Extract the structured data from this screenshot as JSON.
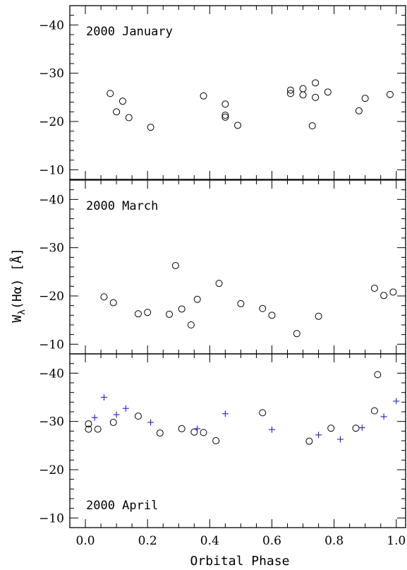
{
  "chart_data": {
    "type": "scatter",
    "xlabel": "Orbital Phase",
    "ylabel": "W",
    "ylabel_sub": "λ",
    "ylabel_rest": "(Hα) [Å]",
    "xlim": [
      -0.05,
      1.03
    ],
    "x_ticks": [
      "0.0",
      "0.2",
      "0.4",
      "0.6",
      "0.8",
      "1.0"
    ],
    "grid": false,
    "colors": {
      "open_circle": "#000000",
      "plus": "#1f1fd6"
    },
    "panels": [
      {
        "label": "2000 January",
        "ylim": [
          -44,
          -8
        ],
        "y_ticks": [
          "-40",
          "-30",
          "-20",
          "-10"
        ],
        "series": [
          {
            "marker": "circle",
            "points": [
              [
                0.08,
                -25.8
              ],
              [
                0.1,
                -22.0
              ],
              [
                0.12,
                -24.2
              ],
              [
                0.14,
                -20.8
              ],
              [
                0.21,
                -18.8
              ],
              [
                0.38,
                -25.3
              ],
              [
                0.45,
                -23.6
              ],
              [
                0.45,
                -21.3
              ],
              [
                0.45,
                -20.9
              ],
              [
                0.49,
                -19.2
              ],
              [
                0.66,
                -26.5
              ],
              [
                0.66,
                -25.8
              ],
              [
                0.7,
                -26.8
              ],
              [
                0.7,
                -25.5
              ],
              [
                0.74,
                -28.0
              ],
              [
                0.74,
                -25.0
              ],
              [
                0.73,
                -19.1
              ],
              [
                0.78,
                -26.1
              ],
              [
                0.88,
                -22.2
              ],
              [
                0.9,
                -24.8
              ],
              [
                0.98,
                -25.6
              ]
            ]
          }
        ]
      },
      {
        "label": "2000 March",
        "ylim": [
          -44,
          -8
        ],
        "y_ticks": [
          "-40",
          "-30",
          "-20",
          "-10"
        ],
        "series": [
          {
            "marker": "circle",
            "points": [
              [
                0.06,
                -19.8
              ],
              [
                0.09,
                -18.6
              ],
              [
                0.17,
                -16.3
              ],
              [
                0.2,
                -16.6
              ],
              [
                0.27,
                -16.2
              ],
              [
                0.29,
                -26.3
              ],
              [
                0.31,
                -17.3
              ],
              [
                0.34,
                -14.0
              ],
              [
                0.36,
                -19.3
              ],
              [
                0.43,
                -22.6
              ],
              [
                0.5,
                -18.4
              ],
              [
                0.57,
                -17.4
              ],
              [
                0.6,
                -16.0
              ],
              [
                0.68,
                -12.2
              ],
              [
                0.75,
                -15.8
              ],
              [
                0.93,
                -21.6
              ],
              [
                0.96,
                -20.1
              ],
              [
                0.99,
                -20.8
              ]
            ]
          }
        ]
      },
      {
        "label": "2000 April",
        "ylim": [
          -44,
          -8
        ],
        "y_ticks": [
          "-40",
          "-30",
          "-20",
          "-10"
        ],
        "series": [
          {
            "marker": "circle",
            "points": [
              [
                0.01,
                -28.4
              ],
              [
                0.01,
                -29.5
              ],
              [
                0.04,
                -28.4
              ],
              [
                0.09,
                -29.8
              ],
              [
                0.17,
                -31.1
              ],
              [
                0.24,
                -27.6
              ],
              [
                0.31,
                -28.5
              ],
              [
                0.35,
                -27.8
              ],
              [
                0.38,
                -27.7
              ],
              [
                0.42,
                -26.0
              ],
              [
                0.57,
                -31.8
              ],
              [
                0.72,
                -25.9
              ],
              [
                0.79,
                -28.6
              ],
              [
                0.87,
                -28.6
              ],
              [
                0.93,
                -32.2
              ],
              [
                0.94,
                -39.7
              ]
            ]
          },
          {
            "marker": "plus",
            "points": [
              [
                0.03,
                -30.8
              ],
              [
                0.06,
                -35.0
              ],
              [
                0.1,
                -31.4
              ],
              [
                0.13,
                -32.7
              ],
              [
                0.21,
                -29.8
              ],
              [
                0.36,
                -28.5
              ],
              [
                0.45,
                -31.6
              ],
              [
                0.6,
                -28.3
              ],
              [
                0.75,
                -27.2
              ],
              [
                0.82,
                -26.3
              ],
              [
                0.89,
                -28.7
              ],
              [
                0.96,
                -31.0
              ],
              [
                1.0,
                -34.2
              ]
            ]
          }
        ]
      }
    ]
  }
}
